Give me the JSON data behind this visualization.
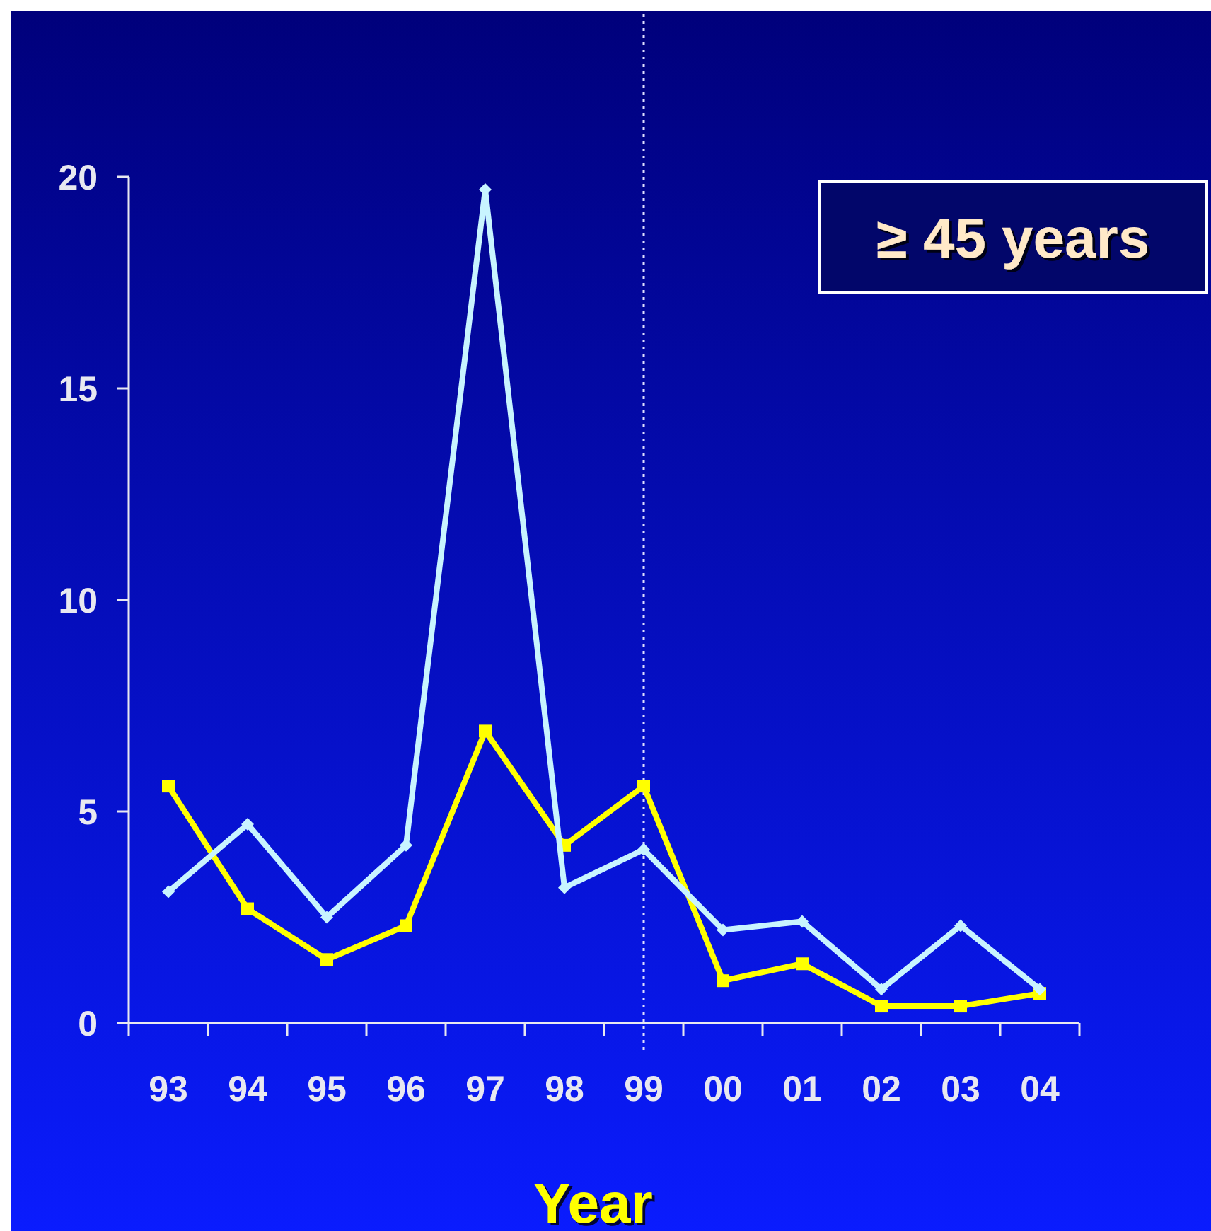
{
  "chart_data": {
    "type": "line",
    "xlabel": "Year",
    "categories": [
      "93",
      "94",
      "95",
      "96",
      "97",
      "98",
      "99",
      "00",
      "01",
      "02",
      "03",
      "04"
    ],
    "ylim": [
      0,
      20
    ],
    "yticks": [
      0,
      5,
      10,
      15,
      20
    ],
    "grid": false,
    "series": [
      {
        "color": "#c8f4ff",
        "marker": "diamond",
        "values": [
          3.1,
          4.7,
          2.5,
          4.2,
          19.7,
          3.2,
          4.1,
          2.2,
          2.4,
          0.8,
          2.3,
          0.8
        ]
      },
      {
        "color": "#ffff00",
        "marker": "square",
        "values": [
          5.6,
          2.7,
          1.5,
          2.3,
          6.9,
          4.2,
          5.6,
          1.0,
          1.4,
          0.4,
          0.4,
          0.7
        ]
      }
    ],
    "ref_lines": [
      {
        "axis": "x",
        "value": "99",
        "color": "#e0e0ff",
        "line_style": "dotted"
      }
    ],
    "annotations": [
      "≥ 45 years"
    ]
  }
}
